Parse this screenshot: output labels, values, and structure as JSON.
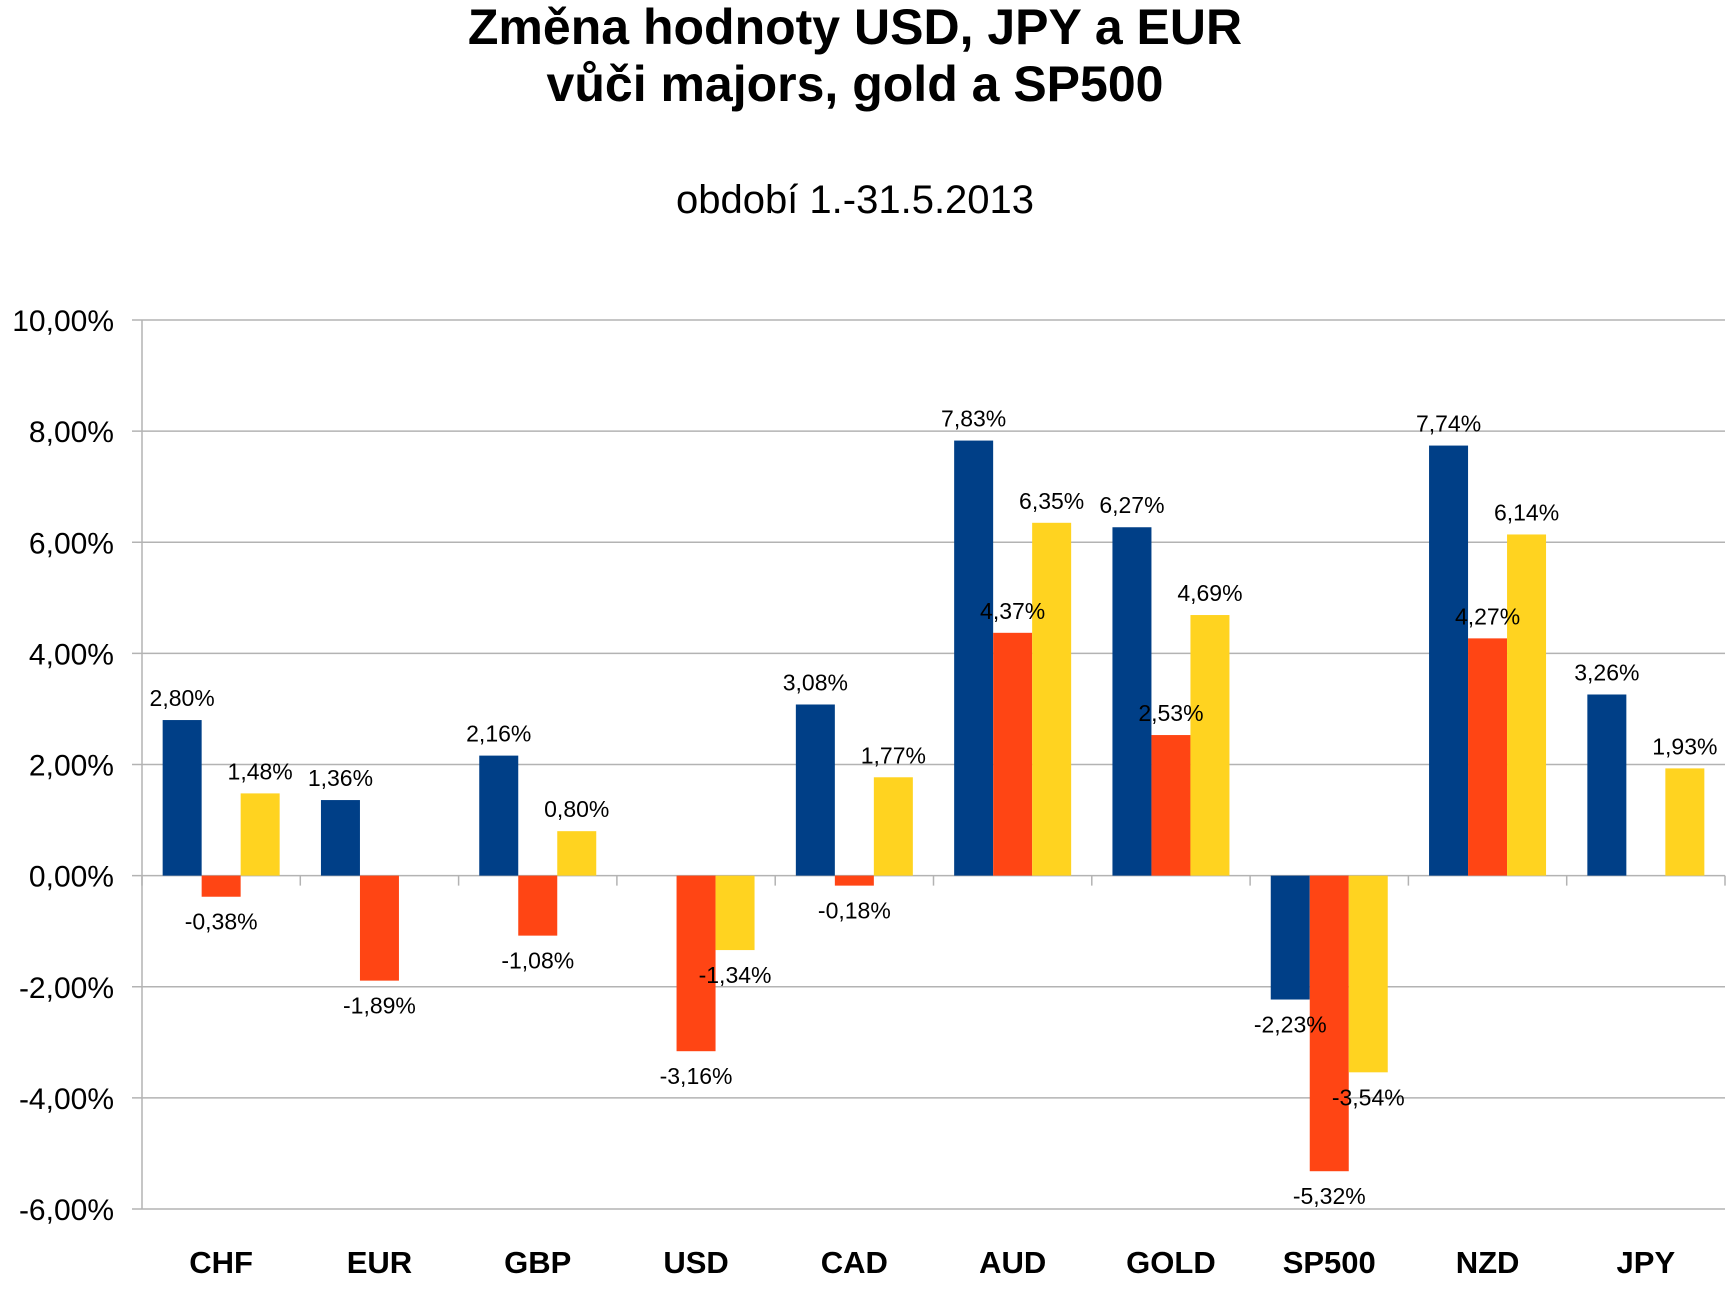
{
  "chart_data": {
    "type": "bar",
    "title_line1": "Změna hodnoty USD, JPY a EUR",
    "title_line2": "vůči majors, gold a SP500",
    "subtitle": "období 1.-31.5.2013",
    "categories": [
      "CHF",
      "EUR",
      "GBP",
      "USD",
      "CAD",
      "AUD",
      "GOLD",
      "SP500",
      "NZD",
      "JPY"
    ],
    "series": [
      {
        "color": "#003F87",
        "values": [
          2.8,
          1.36,
          2.16,
          null,
          3.08,
          7.83,
          6.27,
          -2.23,
          7.74,
          3.26
        ],
        "labels": [
          "2,80%",
          "1,36%",
          "2,16%",
          null,
          "3,08%",
          "7,83%",
          "6,27%",
          "-2,23%",
          "7,74%",
          "3,26%"
        ]
      },
      {
        "color": "#FF4514",
        "values": [
          -0.38,
          -1.89,
          -1.08,
          -3.16,
          -0.18,
          4.37,
          2.53,
          -5.32,
          4.27,
          null
        ],
        "labels": [
          "-0,38%",
          "-1,89%",
          "-1,08%",
          "-3,16%",
          "-0,18%",
          "4,37%",
          "2,53%",
          "-5,32%",
          "4,27%",
          null
        ]
      },
      {
        "color": "#FFD320",
        "values": [
          1.48,
          null,
          0.8,
          -1.34,
          1.77,
          6.35,
          4.69,
          -3.54,
          6.14,
          1.93
        ],
        "labels": [
          "1,48%",
          null,
          "0,80%",
          "-1,34%",
          "1,77%",
          "6,35%",
          "4,69%",
          "-3,54%",
          "6,14%",
          "1,93%"
        ]
      }
    ],
    "ylim": [
      -6,
      10
    ],
    "yticks": [
      10,
      8,
      6,
      4,
      2,
      0,
      -2,
      -4,
      -6
    ],
    "ytick_labels": [
      "10,00%",
      "8,00%",
      "6,00%",
      "4,00%",
      "2,00%",
      "0,00%",
      "-2,00%",
      "-4,00%",
      "-6,00%"
    ],
    "grid": true,
    "legend": "none"
  }
}
